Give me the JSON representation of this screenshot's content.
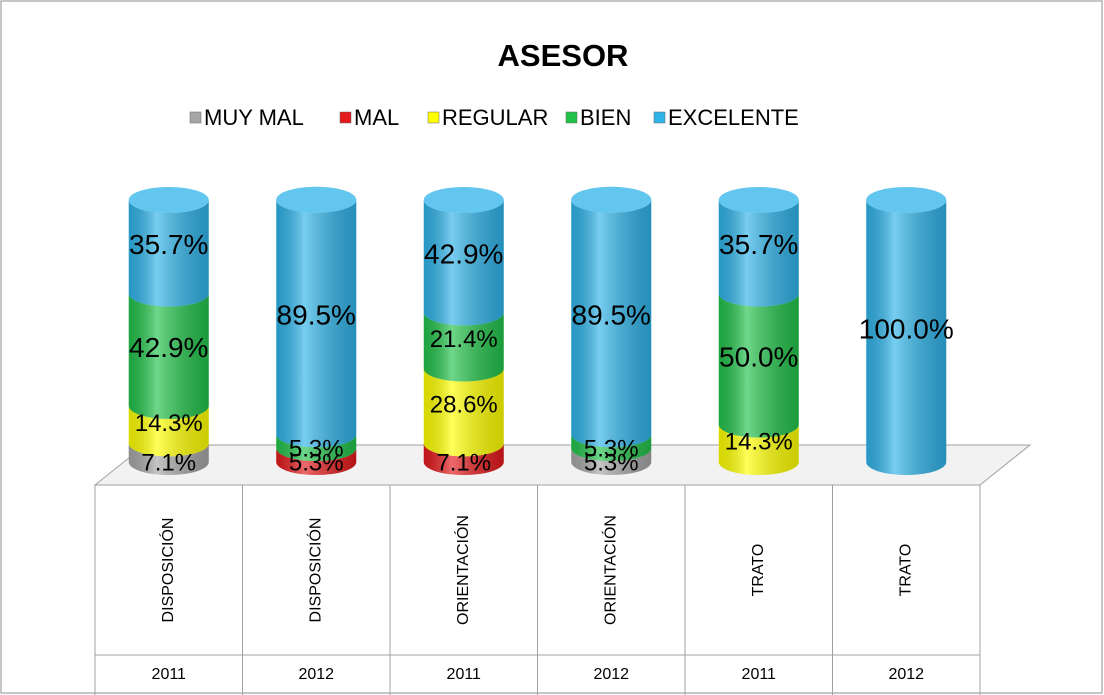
{
  "chart_data": {
    "type": "stacked-cylinder",
    "title": "ASESOR",
    "categories": [
      {
        "name": "DISPOSICIÓN",
        "year": "2011"
      },
      {
        "name": "DISPOSICIÓN",
        "year": "2012"
      },
      {
        "name": "ORIENTACIÓN",
        "year": "2011"
      },
      {
        "name": "ORIENTACIÓN",
        "year": "2012"
      },
      {
        "name": "TRATO",
        "year": "2011"
      },
      {
        "name": "TRATO",
        "year": "2012"
      }
    ],
    "series": [
      {
        "name": "MUY MAL",
        "color": "#a6a6a6",
        "values": [
          7.1,
          null,
          null,
          5.3,
          null,
          null
        ],
        "value_labels": [
          "7.1%",
          null,
          null,
          "5.3%",
          null,
          null
        ]
      },
      {
        "name": "MAL",
        "color": "#e31a1c",
        "values": [
          null,
          5.3,
          7.1,
          null,
          null,
          null
        ],
        "value_labels": [
          null,
          "5.3%",
          "7.1%",
          null,
          null,
          null
        ]
      },
      {
        "name": "REGULAR",
        "color": "#ffff00",
        "values": [
          14.3,
          null,
          28.6,
          null,
          14.3,
          null
        ],
        "value_labels": [
          "14.3%",
          null,
          "28.6%",
          null,
          "14.3%",
          null
        ]
      },
      {
        "name": "BIEN",
        "color": "#22c24a",
        "values": [
          42.9,
          5.3,
          21.4,
          5.3,
          50.0,
          null
        ],
        "value_labels": [
          "42.9%",
          "5.3%",
          "21.4%",
          "5.3%",
          "50.0%",
          null
        ]
      },
      {
        "name": "EXCELENTE",
        "color": "#2fb3e8",
        "values": [
          35.7,
          89.5,
          42.9,
          89.5,
          35.7,
          100.0
        ],
        "value_labels": [
          "35.7%",
          "89.5%",
          "42.9%",
          "89.5%",
          "35.7%",
          "100.0%"
        ]
      }
    ],
    "legend": "top"
  }
}
